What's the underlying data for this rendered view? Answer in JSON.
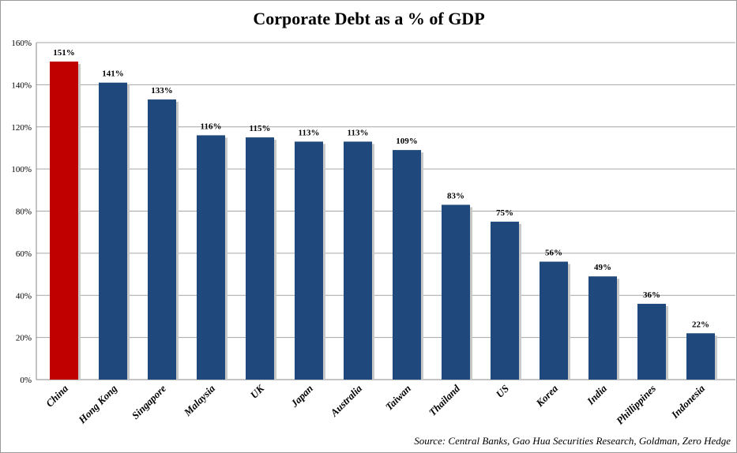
{
  "chart_data": {
    "type": "bar",
    "title": "Corporate Debt as a % of GDP",
    "categories": [
      "China",
      "Hong Kong",
      "Singapore",
      "Malaysia",
      "UK",
      "Japan",
      "Australia",
      "Taiwan",
      "Thailand",
      "US",
      "Korea",
      "India",
      "Phillippines",
      "Indonesia"
    ],
    "values": [
      151,
      141,
      133,
      116,
      115,
      113,
      113,
      109,
      83,
      75,
      56,
      49,
      36,
      22
    ],
    "data_labels": [
      "151%",
      "141%",
      "133%",
      "116%",
      "115%",
      "113%",
      "113%",
      "109%",
      "83%",
      "75%",
      "56%",
      "49%",
      "36%",
      "22%"
    ],
    "ylim": [
      0,
      160
    ],
    "yticks": [
      0,
      20,
      40,
      60,
      80,
      100,
      120,
      140,
      160
    ],
    "ytick_labels": [
      "0%",
      "20%",
      "40%",
      "60%",
      "80%",
      "100%",
      "120%",
      "140%",
      "160%"
    ],
    "grid": true,
    "colors": {
      "highlight": "#c00000",
      "default": "#1f497d"
    },
    "highlight_category": "China",
    "source": "Source: Central Banks, Gao Hua Securities Research, Goldman, Zero Hedge"
  }
}
